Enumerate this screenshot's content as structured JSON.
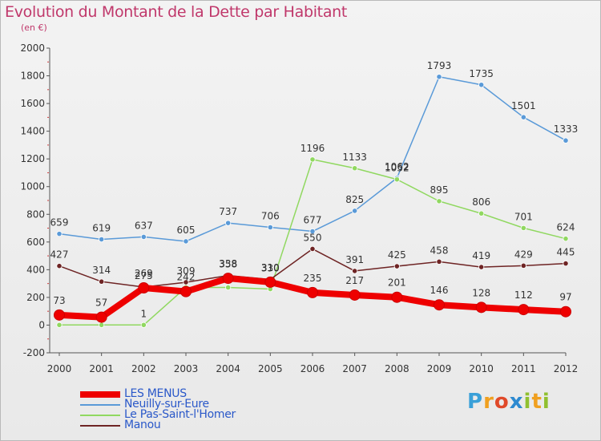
{
  "header": {
    "title": "Evolution du Montant de la Dette par Habitant",
    "subtitle": "(en €)"
  },
  "logo": {
    "text": "Proxiti",
    "letters": [
      "P",
      "r",
      "o",
      "x",
      "i",
      "t",
      "i"
    ]
  },
  "chart_data": {
    "type": "line",
    "title": "Evolution du Montant de la Dette par Habitant",
    "subtitle": "(en €)",
    "xlabel": "",
    "ylabel": "",
    "x": [
      "2000",
      "2001",
      "2002",
      "2003",
      "2004",
      "2005",
      "2006",
      "2007",
      "2008",
      "2009",
      "2010",
      "2011",
      "2012"
    ],
    "ylim": [
      -200,
      2000
    ],
    "yticks": [
      -200,
      0,
      200,
      400,
      600,
      800,
      1000,
      1200,
      1400,
      1600,
      1800,
      2000
    ],
    "grid": false,
    "legend_position": "bottom-left",
    "series": [
      {
        "name": "LES MENUS",
        "color": "#ee0000",
        "values": [
          73,
          57,
          269,
          242,
          338,
          310,
          235,
          217,
          201,
          146,
          128,
          112,
          97
        ],
        "labels": [
          "73",
          "57",
          "269",
          "242",
          "338",
          "310",
          "235",
          "217",
          "201",
          "146",
          "128",
          "112",
          "97"
        ]
      },
      {
        "name": "Neuilly-sur-Eure",
        "color": "#5a9ad8",
        "values": [
          659,
          619,
          637,
          605,
          737,
          706,
          677,
          825,
          1062,
          1793,
          1735,
          1501,
          1333
        ],
        "labels": [
          "659",
          "619",
          "637",
          "605",
          "737",
          "706",
          "677",
          "825",
          "1062",
          "1793",
          "1735",
          "1501",
          "1333"
        ]
      },
      {
        "name": "Le Pas-Saint-l'Homer",
        "color": "#90d860",
        "values": [
          1,
          1,
          1,
          272,
          272,
          260,
          1196,
          1133,
          1052,
          895,
          806,
          701,
          624
        ],
        "labels": [
          "",
          "",
          "1",
          "",
          "",
          "",
          "1196",
          "1133",
          "1052",
          "895",
          "806",
          "701",
          "624"
        ]
      },
      {
        "name": "Manou",
        "color": "#6e2424",
        "values": [
          427,
          314,
          275,
          309,
          358,
          330,
          550,
          391,
          425,
          458,
          419,
          429,
          445
        ],
        "labels": [
          "427",
          "314",
          "275",
          "309",
          "358",
          "330",
          "550",
          "391",
          "425",
          "458",
          "419",
          "429",
          "445"
        ]
      }
    ]
  }
}
